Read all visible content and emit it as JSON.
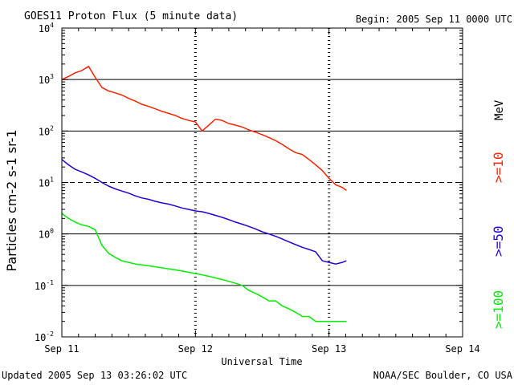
{
  "header": {
    "title": "GOES11 Proton Flux (5 minute data)",
    "begin": "Begin: 2005 Sep 11 0000 UTC"
  },
  "footer": {
    "updated": "Updated 2005 Sep 13 03:26:02 UTC",
    "credit": "NOAA/SEC Boulder, CO USA"
  },
  "chart_data": {
    "type": "line",
    "title": "GOES11 Proton Flux (5 minute data)",
    "xlabel": "Universal Time",
    "ylabel": "Particles cm-2 s-1 sr-1",
    "y_scale": "log",
    "ylim": [
      0.01,
      10000
    ],
    "xlim": [
      0,
      3
    ],
    "x_units": "days since 2005 Sep 11 0000 UTC",
    "x_ticks": [
      {
        "value": 0,
        "label": "Sep 11"
      },
      {
        "value": 1,
        "label": "Sep 12"
      },
      {
        "value": 2,
        "label": "Sep 13"
      },
      {
        "value": 3,
        "label": "Sep 14"
      }
    ],
    "y_ticks": [
      {
        "value": 0.01,
        "base": "10",
        "exp": "-2"
      },
      {
        "value": 0.1,
        "base": "10",
        "exp": "-1"
      },
      {
        "value": 1,
        "base": "10",
        "exp": "0"
      },
      {
        "value": 10,
        "base": "10",
        "exp": "1"
      },
      {
        "value": 100,
        "base": "10",
        "exp": "2"
      },
      {
        "value": 1000,
        "base": "10",
        "exp": "3"
      },
      {
        "value": 10000,
        "base": "10",
        "exp": "4"
      }
    ],
    "gridlines_y": [
      0.1,
      1,
      100,
      1000
    ],
    "dashed_gridlines_y": [
      10
    ],
    "dotted_vlines_x": [
      1,
      2
    ],
    "legend": {
      "unit": "MeV",
      "unit_color": "#000000",
      "entries": [
        {
          "label": ">=10",
          "color": "#ff2200"
        },
        {
          "label": ">=50",
          "color": "#2200dd"
        },
        {
          "label": ">=100",
          "color": "#00ee00"
        }
      ]
    },
    "series": [
      {
        "name": ">=10 MeV",
        "color": "#ff2200",
        "x": [
          0.0,
          0.05,
          0.1,
          0.15,
          0.2,
          0.25,
          0.3,
          0.35,
          0.4,
          0.45,
          0.5,
          0.55,
          0.6,
          0.65,
          0.7,
          0.75,
          0.8,
          0.85,
          0.9,
          0.95,
          1.0,
          1.05,
          1.1,
          1.15,
          1.2,
          1.25,
          1.3,
          1.35,
          1.4,
          1.45,
          1.5,
          1.55,
          1.6,
          1.65,
          1.7,
          1.75,
          1.8,
          1.85,
          1.9,
          1.95,
          2.0,
          2.05,
          2.1,
          2.13
        ],
        "values": [
          1000,
          1150,
          1350,
          1500,
          1800,
          1100,
          700,
          600,
          550,
          500,
          430,
          380,
          330,
          300,
          270,
          240,
          220,
          200,
          175,
          160,
          150,
          100,
          130,
          170,
          160,
          140,
          130,
          120,
          105,
          95,
          85,
          75,
          65,
          55,
          45,
          38,
          35,
          28,
          22,
          17,
          12,
          9,
          8,
          7
        ]
      },
      {
        "name": ">=50 MeV",
        "color": "#2200dd",
        "x": [
          0.0,
          0.05,
          0.1,
          0.15,
          0.2,
          0.25,
          0.3,
          0.35,
          0.4,
          0.45,
          0.5,
          0.55,
          0.6,
          0.65,
          0.7,
          0.75,
          0.8,
          0.85,
          0.9,
          0.95,
          1.0,
          1.05,
          1.1,
          1.15,
          1.2,
          1.25,
          1.3,
          1.35,
          1.4,
          1.45,
          1.5,
          1.55,
          1.6,
          1.65,
          1.7,
          1.75,
          1.8,
          1.85,
          1.9,
          1.95,
          2.0,
          2.05,
          2.1,
          2.13
        ],
        "values": [
          28,
          22,
          18,
          16,
          14,
          12,
          10,
          8.5,
          7.5,
          6.8,
          6.2,
          5.5,
          5.0,
          4.7,
          4.3,
          4.0,
          3.8,
          3.5,
          3.2,
          3.0,
          2.8,
          2.7,
          2.5,
          2.3,
          2.1,
          1.9,
          1.7,
          1.55,
          1.4,
          1.25,
          1.1,
          1.0,
          0.9,
          0.8,
          0.7,
          0.62,
          0.55,
          0.5,
          0.45,
          0.3,
          0.28,
          0.26,
          0.28,
          0.3
        ]
      },
      {
        "name": ">=100 MeV",
        "color": "#00ee00",
        "x": [
          0.0,
          0.05,
          0.1,
          0.15,
          0.2,
          0.25,
          0.3,
          0.35,
          0.4,
          0.45,
          0.5,
          0.55,
          0.6,
          0.65,
          0.7,
          0.75,
          0.8,
          0.85,
          0.9,
          0.95,
          1.0,
          1.05,
          1.1,
          1.15,
          1.2,
          1.25,
          1.3,
          1.35,
          1.4,
          1.45,
          1.5,
          1.55,
          1.6,
          1.65,
          1.7,
          1.75,
          1.8,
          1.85,
          1.9,
          1.95,
          2.0,
          2.05,
          2.1,
          2.13
        ],
        "values": [
          2.5,
          2.0,
          1.7,
          1.5,
          1.4,
          1.2,
          0.6,
          0.42,
          0.35,
          0.3,
          0.28,
          0.26,
          0.25,
          0.24,
          0.23,
          0.22,
          0.21,
          0.2,
          0.19,
          0.18,
          0.17,
          0.16,
          0.15,
          0.14,
          0.13,
          0.12,
          0.11,
          0.1,
          0.08,
          0.07,
          0.06,
          0.05,
          0.05,
          0.04,
          0.035,
          0.03,
          0.025,
          0.025,
          0.02,
          0.02,
          0.02,
          0.02,
          0.02,
          0.02
        ]
      }
    ]
  }
}
